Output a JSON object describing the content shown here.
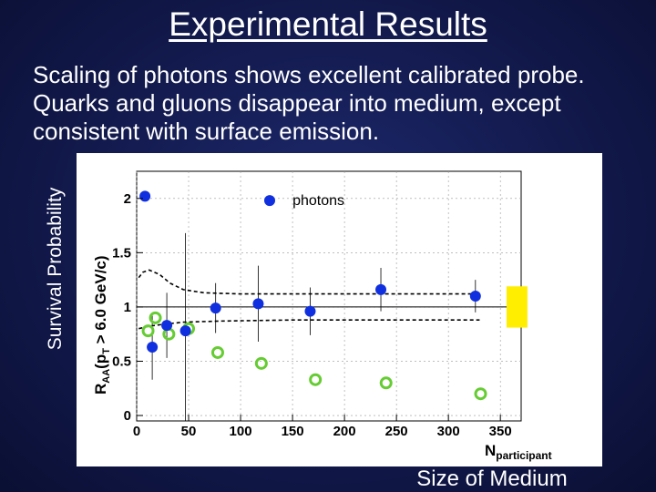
{
  "slide": {
    "title": "Experimental Results",
    "subtitle_lines": [
      "Scaling of photons shows excellent calibrated probe.",
      "Quarks and gluons disappear into medium, except",
      "consistent with surface emission."
    ],
    "outer_ylabel": "Survival Probability",
    "outer_xlabel": "Size of Medium"
  },
  "colors": {
    "background": "#141c52",
    "photons": "#1030e0",
    "pi0": "#66cc33",
    "band": "#ffee00",
    "envelope": "#000000"
  },
  "chart_data": {
    "type": "scatter",
    "ylabel_main": "R",
    "ylabel_sub": "AA",
    "ylabel_rest": "(p",
    "ylabel_sub2": "T",
    "ylabel_tail": " > 6.0 GeV/c)",
    "xlabel_main": "N",
    "xlabel_sub": "participant",
    "xlim": [
      0,
      370
    ],
    "ylim": [
      -0.05,
      2.25
    ],
    "xticks": [
      0,
      50,
      100,
      150,
      200,
      250,
      300,
      350
    ],
    "yticks": [
      0,
      0.5,
      1,
      1.5,
      2
    ],
    "ytick_labels": [
      "0",
      "0.5",
      "1",
      "1.5",
      "2"
    ],
    "reference_line": 1,
    "legend": {
      "label": "photons",
      "position": "top-center"
    },
    "series": [
      {
        "name": "photons",
        "marker": "filled-circle",
        "points": [
          {
            "x": 8,
            "y": 2.02,
            "err": 0
          },
          {
            "x": 15,
            "y": 0.63,
            "err": 0.3
          },
          {
            "x": 29,
            "y": 0.83,
            "err": 0.3
          },
          {
            "x": 47,
            "y": 0.78,
            "err": 0.9
          },
          {
            "x": 76,
            "y": 0.99,
            "err": 0.23
          },
          {
            "x": 117,
            "y": 1.03,
            "err": 0.35
          },
          {
            "x": 167,
            "y": 0.96,
            "err": 0.22
          },
          {
            "x": 235,
            "y": 1.16,
            "err": 0.2
          },
          {
            "x": 326,
            "y": 1.1,
            "err": 0.15
          }
        ]
      },
      {
        "name": "",
        "marker": "open-circle",
        "points": [
          {
            "x": 11,
            "y": 0.78
          },
          {
            "x": 18,
            "y": 0.9
          },
          {
            "x": 31,
            "y": 0.75
          },
          {
            "x": 50,
            "y": 0.8
          },
          {
            "x": 78,
            "y": 0.58
          },
          {
            "x": 120,
            "y": 0.48
          },
          {
            "x": 172,
            "y": 0.33
          },
          {
            "x": 240,
            "y": 0.3
          },
          {
            "x": 331,
            "y": 0.2
          }
        ]
      }
    ],
    "envelope": {
      "upper": [
        [
          2,
          1.27
        ],
        [
          6,
          1.32
        ],
        [
          12,
          1.34
        ],
        [
          22,
          1.3
        ],
        [
          32,
          1.22
        ],
        [
          45,
          1.16
        ],
        [
          65,
          1.13
        ],
        [
          100,
          1.12
        ],
        [
          150,
          1.12
        ],
        [
          330,
          1.12
        ]
      ],
      "lower": [
        [
          2,
          0.8
        ],
        [
          10,
          0.82
        ],
        [
          25,
          0.84
        ],
        [
          45,
          0.86
        ],
        [
          80,
          0.87
        ],
        [
          150,
          0.88
        ],
        [
          330,
          0.88
        ]
      ]
    },
    "band": {
      "x": [
        356,
        376
      ],
      "y": [
        0.81,
        1.19
      ]
    }
  }
}
